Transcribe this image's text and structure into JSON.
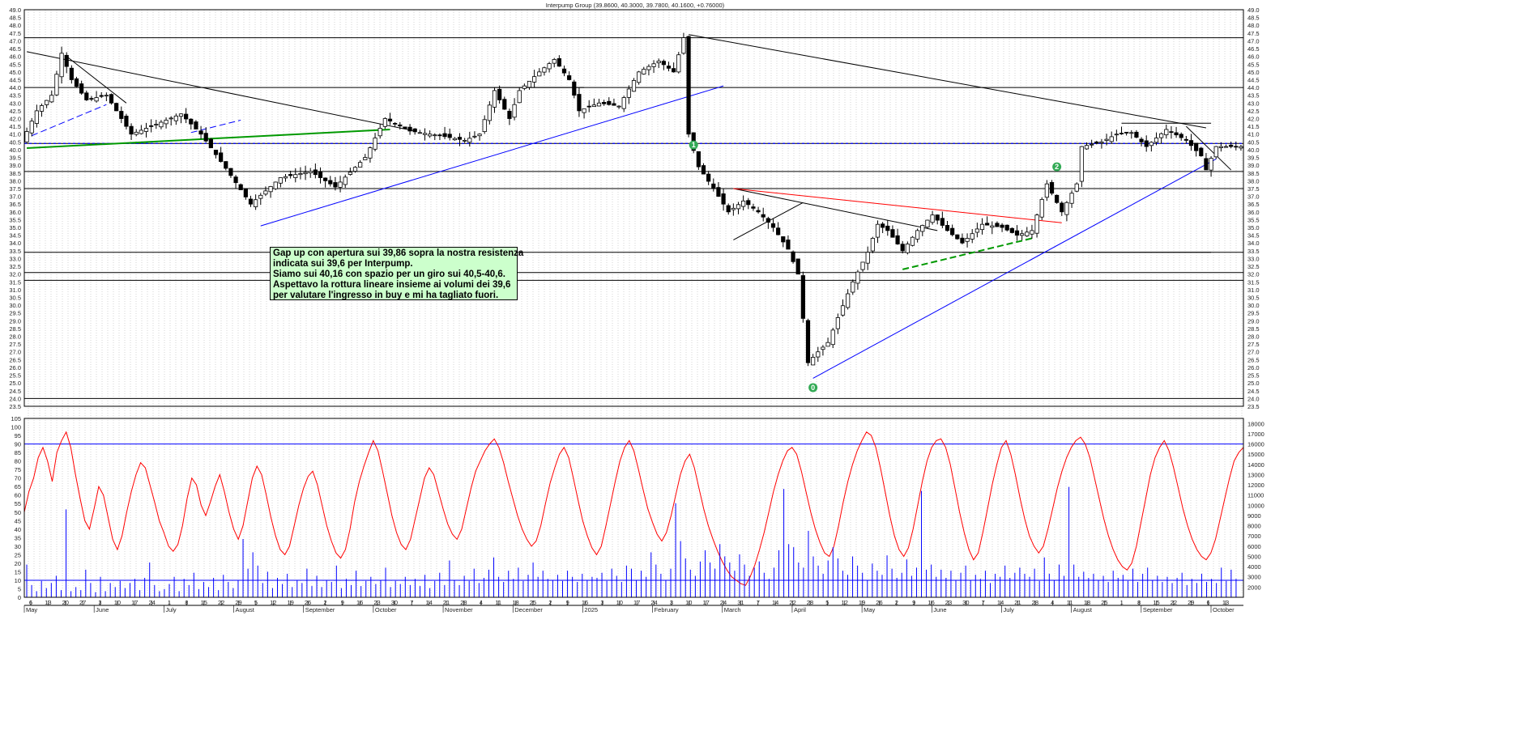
{
  "chart_data": [
    {
      "type": "candlestick",
      "title": "Interpump Group (39.8600, 40.3000, 39.7800, 40.1600, +0.76000)",
      "ylim": [
        23.5,
        49.0
      ],
      "y_tick_step": 0.5,
      "grid": "vertical dotted",
      "x_period": "May 2024 - October 2025 (daily)",
      "x_month_labels": [
        "May",
        "June",
        "July",
        "August",
        "September",
        "October",
        "November",
        "December",
        "2025",
        "February",
        "March",
        "April",
        "May",
        "June",
        "July",
        "August",
        "September",
        "October"
      ],
      "x_day_labels": [
        "6",
        "13",
        "20",
        "27",
        "3",
        "10",
        "17",
        "24",
        "1",
        "8",
        "15",
        "22",
        "29",
        "5",
        "12",
        "19",
        "26",
        "2",
        "9",
        "16",
        "23",
        "30",
        "7",
        "14",
        "21",
        "28",
        "4",
        "11",
        "18",
        "25",
        "2",
        "9",
        "16",
        "3",
        "10",
        "17",
        "24",
        "3",
        "10",
        "17",
        "24",
        "31",
        "7",
        "14",
        "22",
        "28",
        "5",
        "12",
        "19",
        "26",
        "2",
        "9",
        "16",
        "23",
        "30",
        "7",
        "14",
        "21",
        "28",
        "4",
        "11",
        "18",
        "25",
        "1",
        "8",
        "15",
        "22",
        "29",
        "6",
        "13"
      ],
      "price_path": [
        [
          0,
          40.5
        ],
        [
          3,
          42.5
        ],
        [
          6,
          43.5
        ],
        [
          8,
          46.2
        ],
        [
          10,
          44.5
        ],
        [
          13,
          43.2
        ],
        [
          17,
          43.5
        ],
        [
          22,
          41.0
        ],
        [
          26,
          41.5
        ],
        [
          32,
          42.3
        ],
        [
          36,
          41.0
        ],
        [
          41,
          38.8
        ],
        [
          46,
          36.5
        ],
        [
          52,
          38.2
        ],
        [
          58,
          38.6
        ],
        [
          63,
          37.6
        ],
        [
          69,
          39.5
        ],
        [
          73,
          42.0
        ],
        [
          78,
          41.2
        ],
        [
          84,
          40.9
        ],
        [
          89,
          40.6
        ],
        [
          92,
          41.0
        ],
        [
          95,
          43.8
        ],
        [
          98,
          42.0
        ],
        [
          100,
          43.8
        ],
        [
          104,
          45.0
        ],
        [
          107,
          45.8
        ],
        [
          110,
          44.5
        ],
        [
          112,
          42.5
        ],
        [
          116,
          43.0
        ],
        [
          120,
          42.8
        ],
        [
          124,
          45.0
        ],
        [
          128,
          45.7
        ],
        [
          131,
          45.0
        ],
        [
          133,
          47.2
        ],
        [
          134,
          41.0
        ],
        [
          136,
          38.9
        ],
        [
          139,
          37.5
        ],
        [
          142,
          36.0
        ],
        [
          145,
          36.7
        ],
        [
          148,
          36.0
        ],
        [
          151,
          35.0
        ],
        [
          154,
          33.6
        ],
        [
          156,
          32.0
        ],
        [
          158,
          26.3
        ],
        [
          160,
          27.0
        ],
        [
          162,
          27.6
        ],
        [
          164,
          29.2
        ],
        [
          167,
          31.5
        ],
        [
          170,
          33.4
        ],
        [
          172,
          35.2
        ],
        [
          174,
          34.8
        ],
        [
          177,
          33.5
        ],
        [
          180,
          34.8
        ],
        [
          183,
          35.8
        ],
        [
          186,
          34.8
        ],
        [
          189,
          34.0
        ],
        [
          193,
          35.2
        ],
        [
          197,
          35.0
        ],
        [
          200,
          34.5
        ],
        [
          203,
          34.8
        ],
        [
          206,
          37.8
        ],
        [
          209,
          36.0
        ],
        [
          212,
          37.8
        ],
        [
          213,
          40.2
        ],
        [
          217,
          40.5
        ],
        [
          220,
          41.0
        ],
        [
          223,
          41.1
        ],
        [
          226,
          40.2
        ],
        [
          230,
          41.3
        ],
        [
          234,
          40.6
        ],
        [
          237,
          39.6
        ],
        [
          238,
          38.7
        ],
        [
          240,
          40.2
        ]
      ],
      "horizontal_levels": [
        47.2,
        44.0,
        40.4,
        38.6,
        37.5,
        33.4,
        32.1,
        31.6,
        24.0,
        23.5
      ],
      "dotted_level": 40.4,
      "trendlines": [
        {
          "color": "black",
          "from": [
            0,
            46.3
          ],
          "to": [
            78,
            41.2
          ]
        },
        {
          "color": "black",
          "from": [
            133,
            47.4
          ],
          "to": [
            237,
            41.4
          ]
        },
        {
          "color": "black",
          "from": [
            73,
            44.0
          ],
          "to": [
            112,
            44.0
          ]
        },
        {
          "color": "black",
          "from": [
            220,
            41.7
          ],
          "to": [
            238,
            41.7
          ]
        },
        {
          "color": "black",
          "from": [
            188,
            33.4
          ],
          "to": [
            238,
            33.4
          ]
        },
        {
          "color": "black",
          "from": [
            233,
            41.5
          ],
          "to": [
            242,
            38.7
          ]
        },
        {
          "color": "black",
          "from": [
            142,
            37.5
          ],
          "to": [
            183,
            34.8
          ]
        },
        {
          "color": "black",
          "from": [
            142,
            34.2
          ],
          "to": [
            156,
            36.6
          ]
        },
        {
          "color": "black",
          "from": [
            8,
            46.0
          ],
          "to": [
            20,
            43.0
          ]
        },
        {
          "color": "blue",
          "from": [
            47,
            35.1
          ],
          "to": [
            140,
            44.1
          ]
        },
        {
          "color": "blue",
          "from": [
            158,
            25.3
          ],
          "to": [
            239,
            39.4
          ]
        },
        {
          "color": "blue",
          "dashed": true,
          "from": [
            1,
            40.9
          ],
          "to": [
            16,
            42.9
          ]
        },
        {
          "color": "blue",
          "dashed": true,
          "from": [
            33,
            41.1
          ],
          "to": [
            43,
            41.9
          ]
        },
        {
          "color": "green",
          "from": [
            0,
            40.1
          ],
          "to": [
            73,
            41.3
          ]
        },
        {
          "color": "green",
          "dashed": true,
          "from": [
            176,
            32.3
          ],
          "to": [
            202,
            34.3
          ]
        },
        {
          "color": "red",
          "from": [
            142,
            37.5
          ],
          "to": [
            208,
            35.3
          ]
        }
      ],
      "markers": [
        "0",
        "1",
        "2"
      ],
      "annotation": [
        "Gap up con apertura sui 39,86 sopra la nostra resistenza",
        "indicata sui 39,6 per Interpump.",
        "Siamo sui 40,16 con spazio per un giro sui 40,5-40,6.",
        "Aspettavo la rottura lineare insieme ai volumi dei 39,6",
        "per valutare l'ingresso in buy e mi ha tagliato fuori."
      ],
      "colors": {
        "up_candle": "#ffffff",
        "down_candle": "#000000",
        "trend_blue": "#0000ff",
        "trend_green": "#009900",
        "trend_red": "#ff0000",
        "marker": "#33aa55"
      }
    },
    {
      "type": "line",
      "series": [
        {
          "color": "#ff0000",
          "values": [
            50,
            62,
            70,
            82,
            88,
            80,
            68,
            85,
            92,
            97,
            88,
            72,
            58,
            45,
            40,
            52,
            65,
            60,
            47,
            34,
            28,
            36,
            50,
            62,
            72,
            79,
            76,
            66,
            56,
            45,
            38,
            30,
            27,
            31,
            42,
            58,
            70,
            66,
            54,
            48,
            56,
            65,
            72,
            62,
            50,
            40,
            34,
            42,
            56,
            70,
            77,
            72,
            60,
            47,
            36,
            28,
            25,
            30,
            42,
            54,
            64,
            71,
            74,
            66,
            54,
            42,
            33,
            26,
            23,
            28,
            40,
            56,
            68,
            77,
            85,
            92,
            86,
            74,
            61,
            48,
            38,
            31,
            28,
            34,
            46,
            58,
            70,
            76,
            72,
            62,
            52,
            43,
            37,
            34,
            40,
            52,
            64,
            74,
            80,
            86,
            90,
            93,
            88,
            79,
            68,
            58,
            48,
            40,
            34,
            30,
            33,
            42,
            55,
            67,
            76,
            84,
            88,
            82,
            70,
            57,
            45,
            36,
            29,
            25,
            30,
            42,
            55,
            68,
            80,
            88,
            92,
            86,
            75,
            63,
            52,
            44,
            37,
            33,
            38,
            48,
            60,
            72,
            80,
            84,
            76,
            64,
            52,
            42,
            34,
            27,
            21,
            16,
            12,
            10,
            8,
            7,
            12,
            19,
            28,
            38,
            50,
            62,
            72,
            80,
            86,
            88,
            84,
            74,
            62,
            50,
            40,
            32,
            26,
            24,
            30,
            42,
            56,
            68,
            78,
            86,
            92,
            97,
            95,
            88,
            76,
            62,
            48,
            36,
            28,
            24,
            29,
            40,
            54,
            68,
            80,
            88,
            92,
            93,
            88,
            78,
            64,
            50,
            38,
            28,
            22,
            26,
            38,
            52,
            66,
            78,
            88,
            92,
            84,
            72,
            58,
            46,
            36,
            30,
            26,
            30,
            40,
            52,
            64,
            74,
            82,
            88,
            92,
            94,
            90,
            82,
            70,
            58,
            46,
            36,
            28,
            22,
            18,
            16,
            20,
            30,
            44,
            58,
            72,
            82,
            88,
            92,
            86,
            76,
            64,
            52,
            42,
            34,
            28,
            24,
            22,
            26,
            34,
            46,
            58,
            70,
            80,
            85,
            88
          ]
        }
      ],
      "ylim": [
        0,
        105
      ],
      "y_tick_step": 5,
      "levels": [
        10,
        90
      ]
    },
    {
      "type": "bar",
      "series": [
        {
          "color": "#0000ff",
          "values": [
            4200,
            2200,
            1600,
            2600,
            1900,
            2400,
            3100,
            1700,
            9600,
            1600,
            2000,
            1700,
            3700,
            2400,
            1500,
            3000,
            1600,
            2400,
            2000,
            2600,
            1900,
            2400,
            2800,
            1700,
            2900,
            4400,
            2200,
            1600,
            1800,
            2300,
            3000,
            1600,
            2800,
            2200,
            3400,
            1800,
            2500,
            2000,
            2900,
            1700,
            3200,
            2500,
            1900,
            2700,
            6700,
            3800,
            5400,
            4100,
            2400,
            3500,
            1900,
            2900,
            2300,
            3300,
            2000,
            2700,
            2400,
            3800,
            2100,
            3100,
            2000,
            2700,
            2500,
            4100,
            1900,
            2800,
            2200,
            3600,
            2100,
            2600,
            3000,
            2300,
            2700,
            3900,
            2000,
            2600,
            2300,
            3000,
            2200,
            2800,
            2100,
            3200,
            1900,
            2600,
            3400,
            2200,
            4600,
            2700,
            2200,
            3100,
            2600,
            3800,
            2400,
            2900,
            3700,
            4900,
            3000,
            2500,
            3600,
            2800,
            3900,
            2600,
            3200,
            4400,
            3000,
            3600,
            2800,
            2700,
            3200,
            2600,
            3600,
            3000,
            2500,
            3300,
            2700,
            3000,
            2900,
            3400,
            2600,
            3800,
            3100,
            2500,
            4100,
            3800,
            2700,
            3600,
            3000,
            5400,
            4200,
            3300,
            2700,
            3800,
            10200,
            6500,
            4800,
            3700,
            3100,
            4500,
            5600,
            4400,
            3800,
            6200,
            5000,
            4400,
            3600,
            5200,
            4200,
            3100,
            3900,
            4500,
            3400,
            2800,
            3900,
            5600,
            11600,
            6200,
            5900,
            4400,
            3900,
            7500,
            5000,
            4100,
            3300,
            4600,
            5900,
            4800,
            3600,
            3200,
            5000,
            4100,
            3400,
            2700,
            4300,
            3600,
            3200,
            5100,
            3800,
            2900,
            3400,
            4700,
            3100,
            3900,
            11400,
            3700,
            4200,
            3000,
            3700,
            2900,
            3600,
            2700,
            3400,
            4100,
            2700,
            3200,
            2800,
            3600,
            2400,
            3300,
            3000,
            4100,
            2900,
            3400,
            3900,
            3300,
            3000,
            3800,
            2600,
            4900,
            3300,
            2700,
            4200,
            3100,
            11800,
            4200,
            3000,
            3500,
            2900,
            3300,
            2700,
            3100,
            2500,
            3600,
            2900,
            3200,
            2600,
            3800,
            2500,
            3300,
            3900,
            2700,
            3100,
            2500,
            3000,
            2400,
            2900,
            3400,
            2200,
            2800,
            2400,
            3300,
            2500,
            2800,
            2400,
            3900,
            2600,
            3700,
            2800
          ]
        }
      ],
      "ylim": [
        1000,
        18500
      ],
      "y_tick_step": 1000
    }
  ]
}
